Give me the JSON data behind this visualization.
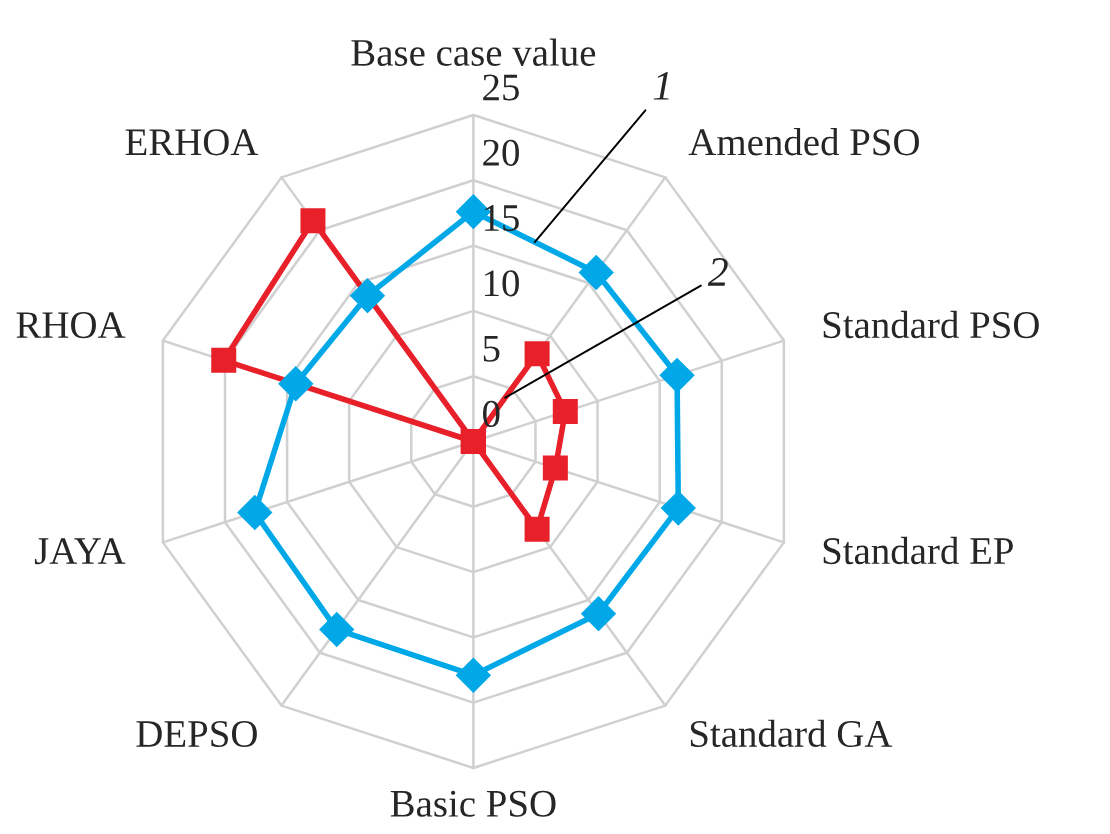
{
  "chart_data": {
    "type": "radar",
    "categories": [
      "Base case value",
      "Amended PSO",
      "Standard PSO",
      "Standard EP",
      "Standard GA",
      "Basic PSO",
      "DEPSO",
      "JAYA",
      "RHOA",
      "ERHOA"
    ],
    "series": [
      {
        "name": "1",
        "color": "#00a8e8",
        "marker": "diamond",
        "values": [
          17.6,
          16.0,
          16.4,
          16.5,
          16.3,
          17.9,
          17.8,
          17.6,
          14.3,
          13.8
        ]
      },
      {
        "name": "2",
        "color": "#e8202a",
        "marker": "square",
        "values": [
          0,
          8.3,
          7.4,
          6.6,
          8.3,
          0,
          0,
          0,
          20.1,
          20.9
        ]
      }
    ],
    "ylim": [
      0,
      25
    ],
    "yticks": [
      0,
      5,
      10,
      15,
      20,
      25
    ],
    "grid": true,
    "legend": false
  }
}
